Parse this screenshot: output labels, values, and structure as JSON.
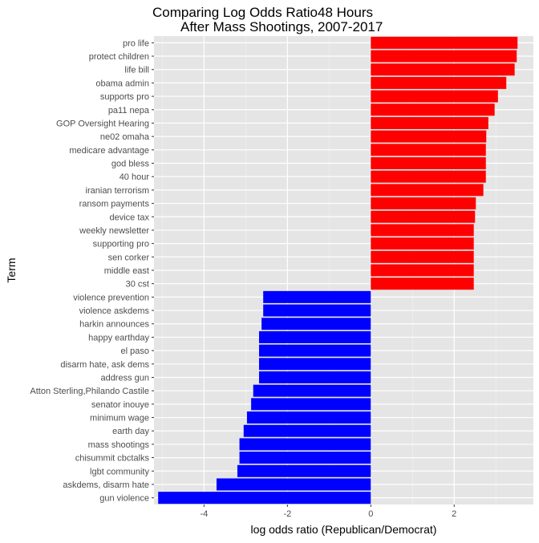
{
  "chart_data": {
    "type": "bar",
    "orientation": "horizontal",
    "title": [
      "Comparing Log Odds Ratio48 Hours",
      "After Mass Shootings, 2007-2017"
    ],
    "xlabel": "log odds ratio (Republican/Democrat)",
    "ylabel": "Term",
    "xlim": [
      -5.2,
      3.9
    ],
    "xticks": [
      -4,
      -2,
      0,
      2
    ],
    "xtick_labels": [
      "-4",
      "-2",
      "0",
      "2"
    ],
    "grid": true,
    "panel_color": "#e5e5e5",
    "positive_color": "#ff0000",
    "negative_color": "#0000ff",
    "categories": [
      "pro life",
      "protect children",
      "life bill",
      "obama admin",
      "supports pro",
      "pa11 nepa",
      "GOP Oversight Hearing",
      "ne02 omaha",
      "medicare advantage",
      "god bless",
      "40 hour",
      "iranian terrorism",
      "ransom payments",
      "device tax",
      "weekly newsletter",
      "supporting pro",
      "sen corker",
      "middle east",
      "30 cst",
      "violence prevention",
      "violence askdems",
      "harkin announces",
      "happy earthday",
      "el paso",
      "disarm hate, ask dems",
      "address gun",
      "Atton Sterling,Philando Castile",
      "senator inouye",
      "minimum wage",
      "earth day",
      "mass shootings",
      "chisummit cbctalks",
      "lgbt community",
      "askdems, disarm hate",
      "gun violence"
    ],
    "values": [
      3.52,
      3.5,
      3.45,
      3.25,
      3.05,
      2.97,
      2.82,
      2.77,
      2.76,
      2.76,
      2.76,
      2.7,
      2.52,
      2.5,
      2.47,
      2.47,
      2.47,
      2.47,
      2.47,
      -2.58,
      -2.58,
      -2.62,
      -2.68,
      -2.68,
      -2.68,
      -2.68,
      -2.82,
      -2.87,
      -2.97,
      -3.05,
      -3.15,
      -3.15,
      -3.2,
      -3.7,
      -5.1
    ]
  }
}
